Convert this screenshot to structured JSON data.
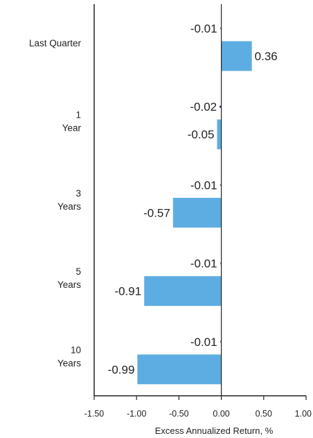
{
  "chart_data": {
    "type": "bar",
    "orientation": "horizontal",
    "categories": [
      [
        "Last Quarter"
      ],
      [
        "1",
        "Year"
      ],
      [
        "3",
        "Years"
      ],
      [
        "5",
        "Years"
      ],
      [
        "10",
        "Years"
      ]
    ],
    "series": [
      {
        "values": [
          -0.01,
          -0.02,
          -0.01,
          -0.01,
          -0.01
        ],
        "color": "#1f3864"
      },
      {
        "values": [
          0.36,
          -0.05,
          -0.57,
          -0.91,
          -0.99
        ],
        "color": "#5dade2"
      }
    ],
    "data_labels": [
      [
        "-0.01",
        "-0.02",
        "-0.01",
        "-0.01",
        "-0.01"
      ],
      [
        "0.36",
        "-0.05",
        "-0.57",
        "-0.91",
        "-0.99"
      ]
    ],
    "xlabel": "Excess Annualized Return, %",
    "xlim": [
      -1.5,
      1.0
    ],
    "xticks": [
      -1.5,
      -1.0,
      -0.5,
      0.0,
      0.5,
      1.0
    ],
    "xtick_labels": [
      "-1.50",
      "-1.00",
      "-0.50",
      "0.00",
      "0.50",
      "1.00"
    ],
    "grid": false
  }
}
